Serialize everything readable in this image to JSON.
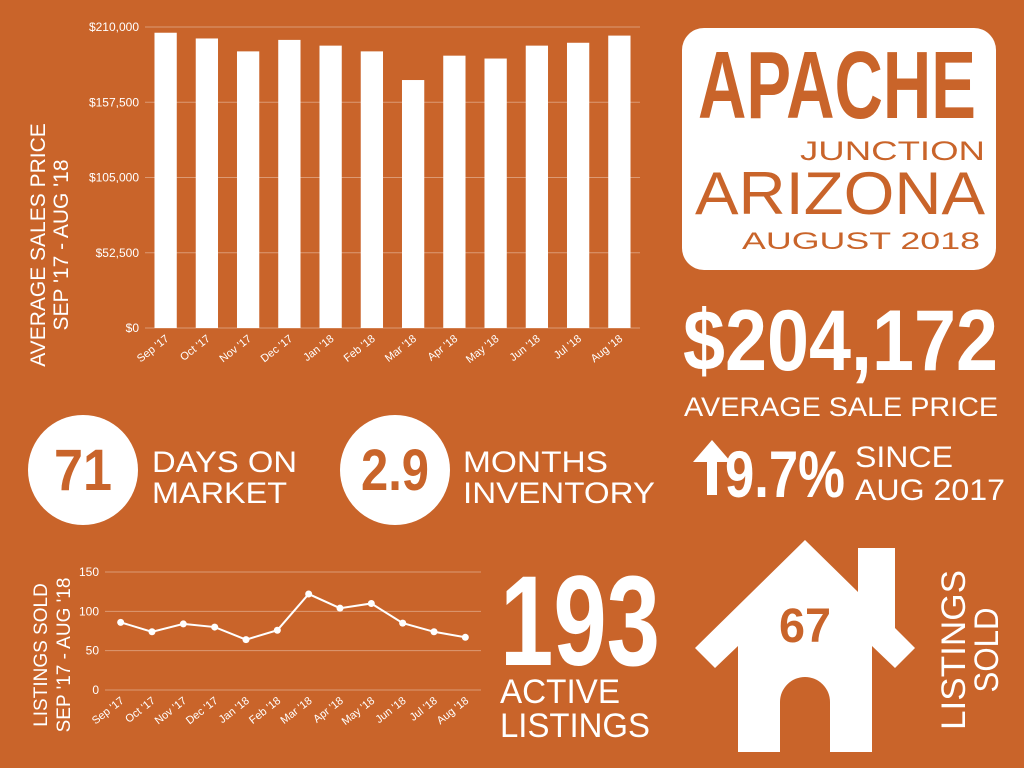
{
  "header": {
    "title": "APACHE",
    "subtitle": "JUNCTION",
    "state": "ARIZONA",
    "date": "AUGUST 2018"
  },
  "average_sale_price": {
    "value": "$204,172",
    "label": "AVERAGE  SALE PRICE"
  },
  "days_on_market": {
    "value": "71",
    "label_lines": [
      "DAYS ON",
      "MARKET"
    ]
  },
  "months_inventory": {
    "value": "2.9",
    "label_lines": [
      "MONTHS",
      "INVENTORY"
    ]
  },
  "change": {
    "value": "9.7%",
    "label_lines": [
      "SINCE",
      "AUG 2017"
    ]
  },
  "active_listings": {
    "value": "193",
    "label_lines": [
      "ACTIVE",
      "LISTINGS"
    ]
  },
  "listings_sold": {
    "value": "67",
    "label_lines": [
      "LISTINGS",
      "SOLD"
    ]
  },
  "chart_data": [
    {
      "type": "bar",
      "y_label": [
        "AVERAGE SALES PRICE",
        "SEP '17 - AUG '18"
      ],
      "categories": [
        "Sep '17",
        "Oct '17",
        "Nov '17",
        "Dec '17",
        "Jan '18",
        "Feb '18",
        "Mar '18",
        "Apr '18",
        "May '18",
        "Jun '18",
        "Jul '18",
        "Aug '18"
      ],
      "values": [
        206000,
        202000,
        193000,
        201000,
        197000,
        193000,
        173000,
        190000,
        188000,
        197000,
        199000,
        204000
      ],
      "color": "#ffffff",
      "grid": true,
      "ylim": [
        0,
        210000
      ],
      "yticks": [
        {
          "value": 0,
          "label": "$0"
        },
        {
          "value": 52500,
          "label": "$52,500"
        },
        {
          "value": 105000,
          "label": "$105,000"
        },
        {
          "value": 157500,
          "label": "$157,500"
        },
        {
          "value": 210000,
          "label": "$210,000"
        }
      ]
    },
    {
      "type": "line",
      "y_label": [
        "LISTINGS SOLD",
        "SEP '17 - AUG '18"
      ],
      "categories": [
        "Sep '17",
        "Oct '17",
        "Nov '17",
        "Dec '17",
        "Jan '18",
        "Feb '18",
        "Mar '18",
        "Apr '18",
        "May '18",
        "Jun '18",
        "Jul '18",
        "Aug '18"
      ],
      "values": [
        86,
        74,
        84,
        80,
        64,
        76,
        122,
        104,
        110,
        85,
        74,
        67
      ],
      "color": "#ffffff",
      "grid": true,
      "ylim": [
        0,
        150
      ],
      "yticks": [
        0,
        50,
        100,
        150
      ]
    }
  ]
}
